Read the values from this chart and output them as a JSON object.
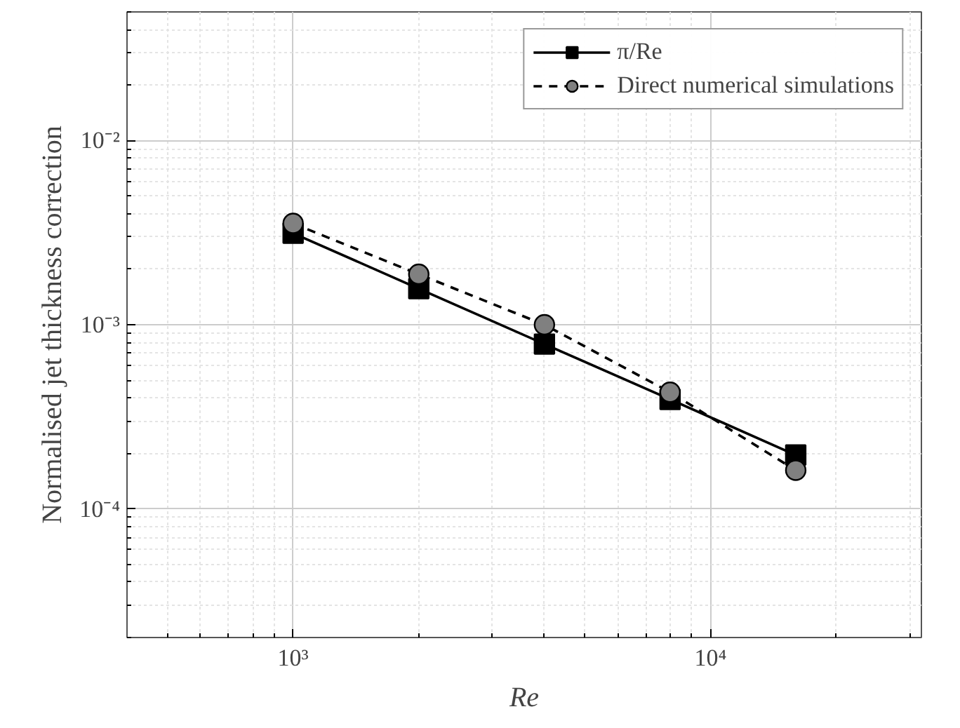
{
  "chart_data": {
    "type": "line",
    "xlabel": "Re",
    "ylabel": "Normalised jet thickness correction",
    "x": [
      1000,
      2000,
      4000,
      8000,
      16000
    ],
    "series": [
      {
        "name": "π/Re",
        "color": "#000000",
        "marker": "square",
        "line_style": "solid",
        "values": [
          0.00314,
          0.00157,
          0.000785,
          0.000393,
          0.000196
        ]
      },
      {
        "name": "Direct numerical simulations",
        "color": "#808080",
        "marker": "circle",
        "line_style": "dashed",
        "values": [
          0.00355,
          0.00188,
          0.001,
          0.00043,
          0.000162
        ]
      }
    ],
    "log": "xy",
    "xlim": [
      400,
      32000
    ],
    "ylim": [
      2e-05,
      0.05
    ],
    "xticks": [
      {
        "value": 1000,
        "label": "10³"
      },
      {
        "value": 10000,
        "label": "10⁴"
      }
    ],
    "yticks": [
      {
        "value": 0.0001,
        "label": "10⁻⁴"
      },
      {
        "value": 0.001,
        "label": "10⁻³"
      },
      {
        "value": 0.01,
        "label": "10⁻²"
      }
    ],
    "grid": true,
    "legend": "top right"
  }
}
